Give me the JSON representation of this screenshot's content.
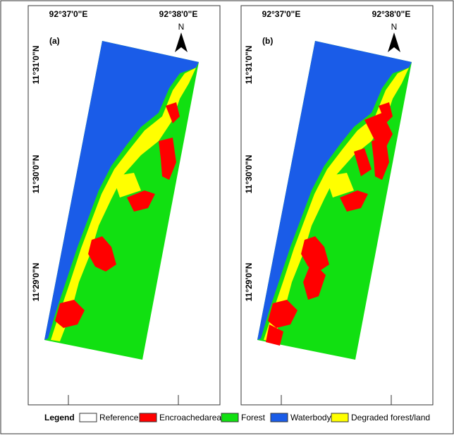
{
  "panels": [
    {
      "label": "(a)",
      "x_labels": [
        "92°37'0\"E",
        "92°38'0\"E"
      ],
      "y_labels": [
        "11°31'0\"N",
        "11°30'0\"N",
        "11°29'0\"N"
      ],
      "north": "N"
    },
    {
      "label": "(b)",
      "x_labels": [
        "92°37'0\"E",
        "92°38'0\"E"
      ],
      "y_labels": [
        "11°31'0\"N",
        "11°30'0\"N",
        "11°29'0\"N"
      ],
      "north": "N"
    }
  ],
  "legend": {
    "title": "Legend",
    "items": [
      {
        "label": "Reference",
        "color": "#ffffff"
      },
      {
        "label": "Encroachedarea",
        "color": "#ff0000"
      },
      {
        "label": "Forest",
        "color": "#11e011"
      },
      {
        "label": "Waterbody",
        "color": "#1a5ce8"
      },
      {
        "label": "Degraded forest/land",
        "color": "#ffff00"
      }
    ]
  }
}
